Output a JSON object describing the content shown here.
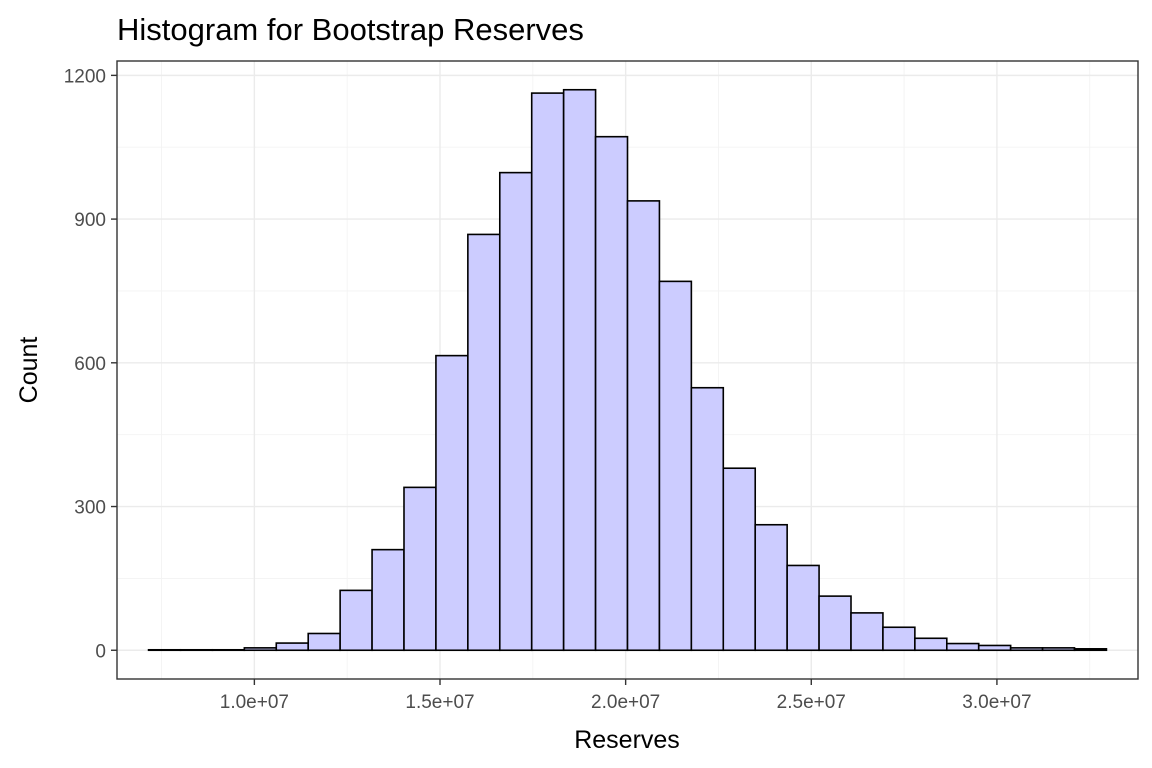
{
  "chart_data": {
    "type": "bar",
    "title": "Histogram for Bootstrap Reserves",
    "xlabel": "Reserves",
    "ylabel": "Count",
    "bar_fill": "#ccccff",
    "bar_outline": "#000000",
    "grid": true,
    "xlim": [
      6300000,
      33800000
    ],
    "ylim": [
      -60,
      1230
    ],
    "x_ticks": [
      10000000,
      15000000,
      20000000,
      25000000,
      30000000
    ],
    "x_tick_labels": [
      "1.0e+07",
      "1.5e+07",
      "2.0e+07",
      "2.5e+07",
      "3.0e+07"
    ],
    "y_ticks": [
      0,
      300,
      600,
      900,
      1200
    ],
    "y_tick_labels": [
      "0",
      "300",
      "600",
      "900",
      "1200"
    ],
    "bin_width": 860000,
    "bin_centers": [
      7580000,
      8440000,
      9300000,
      10160000,
      11020000,
      11880000,
      12740000,
      13600000,
      14460000,
      15320000,
      16180000,
      17040000,
      17900000,
      18760000,
      19620000,
      20480000,
      21340000,
      22200000,
      23060000,
      23920000,
      24780000,
      25640000,
      26500000,
      27360000,
      28220000,
      29080000,
      29940000,
      30800000,
      31660000,
      32520000
    ],
    "values": [
      1,
      1,
      1,
      5,
      15,
      35,
      125,
      210,
      340,
      615,
      868,
      997,
      1163,
      1170,
      1072,
      938,
      770,
      548,
      380,
      262,
      177,
      113,
      78,
      48,
      25,
      14,
      10,
      5,
      5,
      3
    ]
  }
}
